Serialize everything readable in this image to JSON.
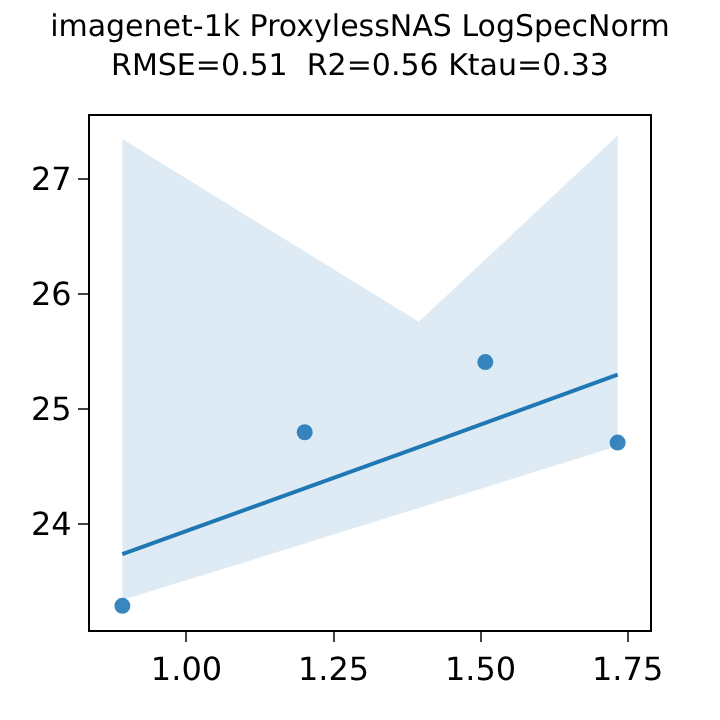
{
  "chart_data": {
    "type": "scatter",
    "title": "imagenet-1k ProxylessNAS LogSpecNorm",
    "subtitle": "RMSE=0.51  R2=0.56 Ktau=0.33",
    "series": [
      {
        "color": "#3a87c0",
        "marker": "circle",
        "x": [
          0.891,
          1.201,
          1.508,
          1.733
        ],
        "values": [
          23.29,
          24.8,
          25.41,
          24.71
        ]
      },
      {
        "type": "line",
        "color": "#1f77b4",
        "x": [
          0.891,
          1.395,
          1.733
        ],
        "values": [
          23.74,
          24.67,
          25.3
        ],
        "lower": [
          23.34,
          24.14,
          24.68
        ],
        "upper": [
          27.35,
          25.76,
          27.38
        ]
      }
    ],
    "xlim": [
      0.836,
      1.788
    ],
    "xticks": [
      {
        "value": 1,
        "label": "1.00"
      },
      {
        "value": 1.25,
        "label": "1.25"
      },
      {
        "value": 1.5,
        "label": "1.50"
      },
      {
        "value": 1.75,
        "label": "1.75"
      }
    ],
    "ylim": [
      23.08,
      27.55
    ],
    "yticks": [
      24,
      25,
      26,
      27
    ]
  }
}
